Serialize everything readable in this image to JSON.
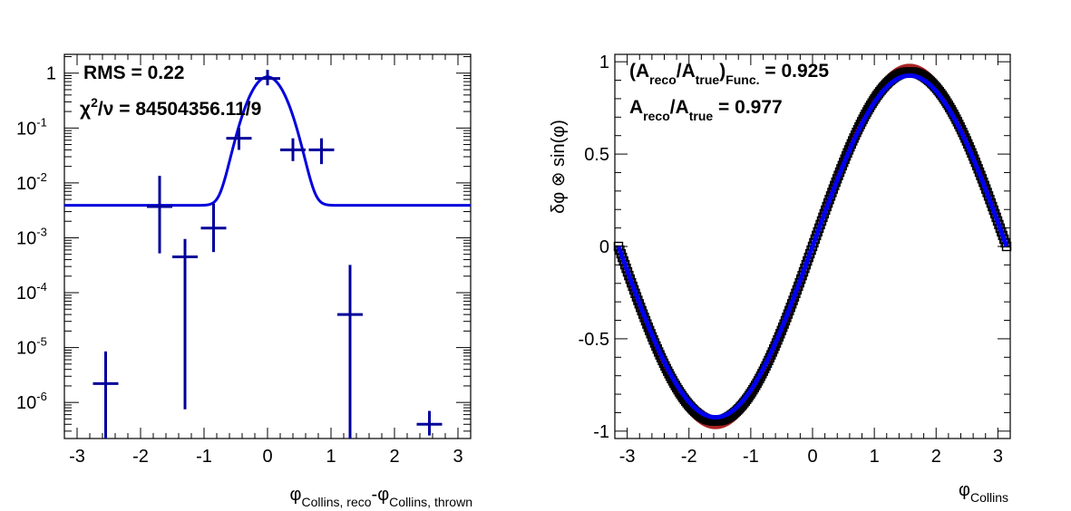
{
  "chart_data": [
    {
      "type": "scatter",
      "panel": "left",
      "xlabel": {
        "main": "φ",
        "sub1": "Collins, reco",
        "mid": "-φ",
        "sub2": "Collins, thrown"
      },
      "ylabel": "",
      "xlim": [
        -3.2,
        3.2
      ],
      "ylim": [
        2.2e-07,
        2.2
      ],
      "yscale": "log",
      "x_ticks": [
        "-3",
        "-2",
        "-1",
        "0",
        "1",
        "2",
        "3"
      ],
      "y_ticks": [
        {
          "value": 1,
          "base": "1",
          "exp": ""
        },
        {
          "value": 0.1,
          "base": "10",
          "exp": "-1"
        },
        {
          "value": 0.01,
          "base": "10",
          "exp": "-2"
        },
        {
          "value": 0.001,
          "base": "10",
          "exp": "-3"
        },
        {
          "value": 0.0001,
          "base": "10",
          "exp": "-4"
        },
        {
          "value": 1e-05,
          "base": "10",
          "exp": "-5"
        },
        {
          "value": 1e-06,
          "base": "10",
          "exp": "-6"
        }
      ],
      "annotations": {
        "rms": "RMS = 0.22",
        "chi2_sym": "χ",
        "chi2_exp": "2",
        "chi2_rest": "/ν = 84504356.11/9"
      },
      "series": [
        {
          "kind": "points",
          "color": "#000099",
          "xhw": 0.2,
          "points": [
            {
              "x": -2.55,
              "y": 2.2e-06,
              "ylo": 2.2e-07,
              "yhi": 8.5e-06
            },
            {
              "x": -1.7,
              "y": 0.0037,
              "ylo": 0.00052,
              "yhi": 0.0135
            },
            {
              "x": -1.3,
              "y": 0.00045,
              "ylo": 7.5e-07,
              "yhi": 0.00095
            },
            {
              "x": -0.85,
              "y": 0.0015,
              "ylo": 0.00055,
              "yhi": 0.0042
            },
            {
              "x": -0.45,
              "y": 0.065,
              "ylo": 0.04,
              "yhi": 0.1
            },
            {
              "x": 0.0,
              "y": 0.8,
              "ylo": 0.6,
              "yhi": 1.15
            },
            {
              "x": 0.4,
              "y": 0.04,
              "ylo": 0.025,
              "yhi": 0.065
            },
            {
              "x": 0.85,
              "y": 0.04,
              "ylo": 0.022,
              "yhi": 0.065
            },
            {
              "x": 1.3,
              "y": 4e-05,
              "ylo": 2.2e-07,
              "yhi": 0.00032
            },
            {
              "x": 2.55,
              "y": 4e-07,
              "ylo": 2.5e-07,
              "yhi": 7e-07
            }
          ]
        },
        {
          "kind": "fit",
          "color": "#0000dd",
          "function": "gaussian + constant",
          "const": 0.0039,
          "amp": 0.85,
          "sigma": 0.22
        }
      ]
    },
    {
      "type": "line",
      "panel": "right",
      "xlabel": {
        "main": "φ",
        "sub": "Collins"
      },
      "ylabel": "δφ ⊗ sin(φ)",
      "xlim": [
        -3.2,
        3.2
      ],
      "ylim": [
        -1.04,
        1.04
      ],
      "x_ticks": [
        "-3",
        "-2",
        "-1",
        "0",
        "1",
        "2",
        "3"
      ],
      "y_ticks": [
        {
          "value": 1,
          "label": "1"
        },
        {
          "value": 0.5,
          "label": "0.5"
        },
        {
          "value": 0,
          "label": "0"
        },
        {
          "value": -0.5,
          "label": "-0.5"
        },
        {
          "value": -1,
          "label": "-1"
        }
      ],
      "annotations": {
        "line1": {
          "open": "(A",
          "sub1": "reco",
          "mid": "/A",
          "sub2": "true",
          "close": ")",
          "sub3": "Func.",
          "value": " = 0.925"
        },
        "line2": {
          "a": "A",
          "sub1": "reco",
          "mid": "/A",
          "sub2": "true",
          "value": " = 0.977"
        }
      },
      "series": [
        {
          "kind": "function",
          "color": "#aa2222",
          "function": "sin(x)",
          "amplitude": 0.977
        },
        {
          "kind": "markers",
          "color": "#000000",
          "marker": "open-square",
          "function": "sin(x)",
          "amplitude": 0.945
        },
        {
          "kind": "function",
          "color": "#0000ee",
          "function": "sin(x)",
          "amplitude": 0.925
        }
      ]
    }
  ]
}
